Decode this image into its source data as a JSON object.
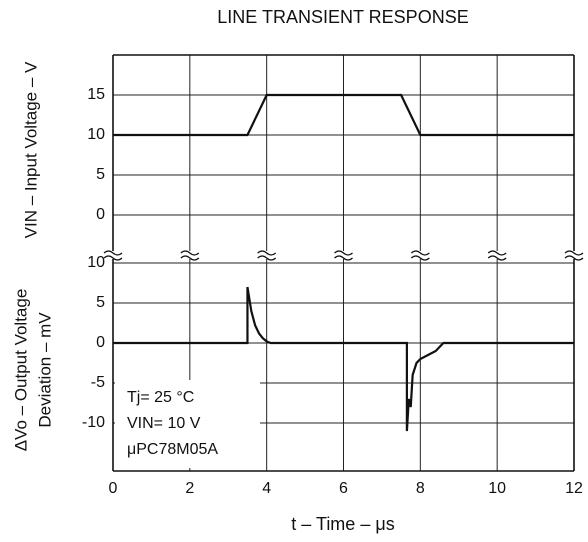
{
  "chart_data": [
    {
      "type": "line",
      "title": "LINE TRANSIENT RESPONSE",
      "ylabel": [
        "VIN – Input Voltage – V"
      ],
      "xlim": [
        0,
        12
      ],
      "xticks": [
        0,
        2,
        4,
        6,
        8,
        10,
        12
      ],
      "ylim": [
        -5,
        20
      ],
      "yticks": [
        0,
        5,
        10,
        15
      ],
      "grid": true,
      "series": [
        {
          "color": "#111111",
          "x": [
            0,
            3.5,
            4,
            7.5,
            8,
            12
          ],
          "values": [
            10,
            10,
            15,
            15,
            10,
            10
          ]
        }
      ]
    },
    {
      "type": "line",
      "xlabel": "t – Time – μs",
      "ylabel": [
        "ΔVo – Output Voltage",
        "Deviation – mV"
      ],
      "xlim": [
        0,
        12
      ],
      "xticks": [
        0,
        2,
        4,
        6,
        8,
        10,
        12
      ],
      "ylim": [
        -16,
        11
      ],
      "yticks": [
        -10,
        -5,
        0,
        5,
        10
      ],
      "grid": true,
      "annotations": [
        "Tj= 25 °C",
        "VIN= 10 V",
        "μPC78M05A"
      ],
      "series": [
        {
          "color": "#111111",
          "x": [
            0,
            3.5,
            3.5,
            3.6,
            3.7,
            3.8,
            3.9,
            4.0,
            4.1,
            7.65,
            7.65,
            7.7,
            7.75,
            7.8,
            7.9,
            8.0,
            8.2,
            8.4,
            8.6,
            12
          ],
          "values": [
            0,
            0,
            7,
            4,
            2.2,
            1.2,
            0.6,
            0.2,
            0,
            0,
            -11,
            -7,
            -8,
            -4,
            -2.5,
            -2,
            -1.5,
            -1,
            0,
            0
          ]
        }
      ]
    }
  ]
}
